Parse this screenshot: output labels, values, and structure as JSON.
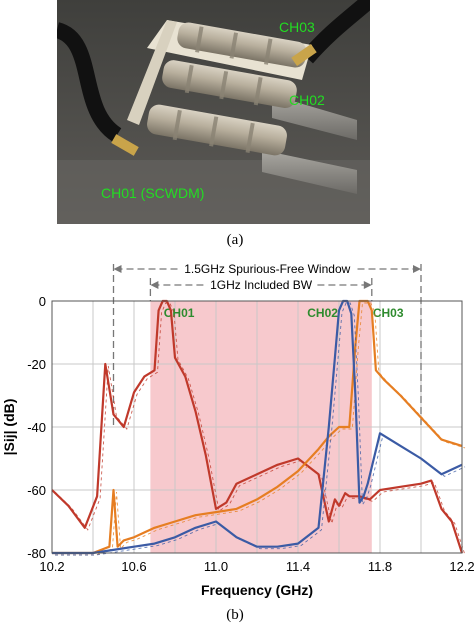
{
  "photo": {
    "labels": {
      "ch03": "CH03",
      "ch02": "CH02",
      "ch01": "CH01 (SCWDM)"
    },
    "label_color": "#22dd22"
  },
  "captions": {
    "a": "(a)",
    "b": "(b)"
  },
  "chart_data": {
    "type": "line",
    "title": "",
    "xlabel": "Frequency (GHz)",
    "ylabel": "|Sij| (dB)",
    "xlim": [
      10.2,
      12.2
    ],
    "ylim": [
      -80,
      0
    ],
    "xticks": [
      "10.2",
      "10.6",
      "11.0",
      "11.4",
      "11.8",
      "12.2"
    ],
    "yticks": [
      "0",
      "-20",
      "-40",
      "-60",
      "-80"
    ],
    "grid": true,
    "included_band": {
      "label": "1GHz Included BW",
      "start": 10.68,
      "end": 11.76,
      "color": "#f7c9cd"
    },
    "spurious_window": {
      "label": "1.5GHz Spurious-Free Window",
      "start": 10.5,
      "end": 12.0
    },
    "channel_labels": [
      "CH01",
      "CH02",
      "CH03"
    ],
    "channel_label_color": "#2e8b2e",
    "series": [
      {
        "color": "#c0392b",
        "x": [
          10.2,
          10.28,
          10.36,
          10.42,
          10.46,
          10.5,
          10.55,
          10.6,
          10.65,
          10.7,
          10.72,
          10.74,
          10.76,
          10.78,
          10.8,
          10.85,
          10.9,
          10.95,
          11.0,
          11.05,
          11.1,
          11.2,
          11.3,
          11.4,
          11.5,
          11.55,
          11.58,
          11.6,
          11.63,
          11.65,
          11.7,
          11.75,
          11.8,
          11.9,
          12.0,
          12.05,
          12.1,
          12.15,
          12.2
        ],
        "y": [
          -60,
          -65,
          -72,
          -62,
          -20,
          -36,
          -40,
          -29,
          -24,
          -22,
          -3,
          0,
          0,
          -3,
          -18,
          -24,
          -35,
          -49,
          -66,
          -64,
          -58,
          -55,
          -52,
          -50,
          -55,
          -70,
          -63,
          -65,
          -61,
          -62,
          -62,
          -63,
          -60,
          -59,
          -58,
          -57,
          -66,
          -70,
          -80
        ]
      },
      {
        "color": "#e67e22",
        "x": [
          10.2,
          10.3,
          10.4,
          10.48,
          10.5,
          10.52,
          10.55,
          10.6,
          10.7,
          10.8,
          10.9,
          11.0,
          11.1,
          11.2,
          11.3,
          11.4,
          11.5,
          11.55,
          11.6,
          11.65,
          11.68,
          11.7,
          11.72,
          11.74,
          11.76,
          11.78,
          11.82,
          11.9,
          12.0,
          12.1,
          12.2
        ],
        "y": [
          -80,
          -80,
          -80,
          -78,
          -60,
          -78,
          -76,
          -75,
          -72,
          -70,
          -68,
          -67,
          -66,
          -63,
          -59,
          -54,
          -47,
          -43,
          -40,
          -40,
          -14,
          0,
          0,
          0,
          -3,
          -22,
          -25,
          -30,
          -37,
          -44,
          -46
        ]
      },
      {
        "color": "#3b5ba5",
        "x": [
          10.2,
          10.3,
          10.4,
          10.5,
          10.6,
          10.7,
          10.8,
          10.9,
          11.0,
          11.1,
          11.2,
          11.3,
          11.4,
          11.5,
          11.55,
          11.58,
          11.6,
          11.62,
          11.64,
          11.66,
          11.68,
          11.7,
          11.72,
          11.74,
          11.8,
          11.9,
          12.0,
          12.1,
          12.2
        ],
        "y": [
          -80,
          -80,
          -80,
          -79,
          -78,
          -77,
          -75,
          -72,
          -70,
          -75,
          -78,
          -78,
          -77,
          -72,
          -40,
          -18,
          -3,
          0,
          0,
          -4,
          -30,
          -64,
          -62,
          -58,
          -42,
          -46,
          -50,
          -55,
          -52
        ]
      }
    ]
  }
}
